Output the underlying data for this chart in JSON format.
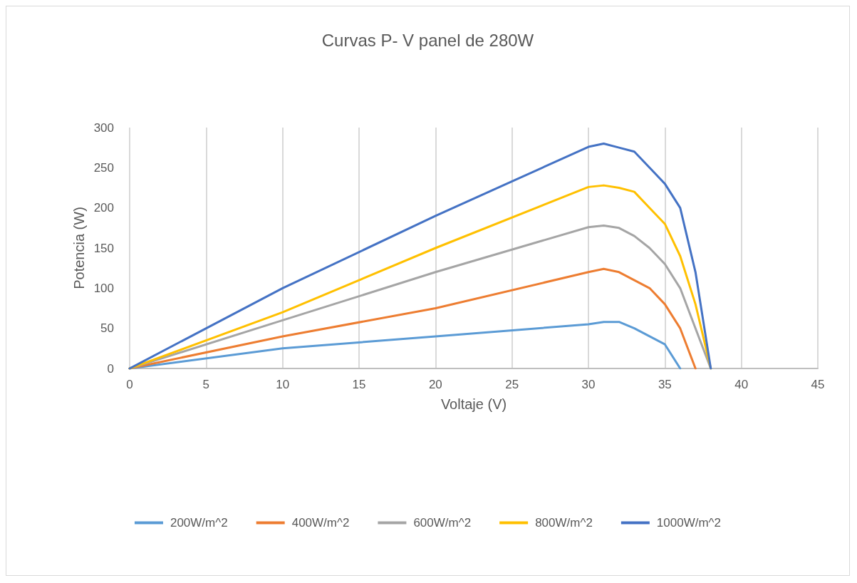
{
  "chart_data": {
    "type": "line",
    "title": "Curvas P- V panel de 280W",
    "xlabel": "Voltaje (V)",
    "ylabel": "Potencia (W)",
    "xlim": [
      0,
      45
    ],
    "xticks": [
      0,
      5,
      10,
      15,
      20,
      25,
      30,
      35,
      40,
      45
    ],
    "ylim": [
      0,
      300
    ],
    "yticks": [
      0,
      50,
      100,
      150,
      200,
      250,
      300
    ],
    "grid": "x",
    "legend": "bottom",
    "marker": "none",
    "line_style": "solid",
    "series": [
      {
        "name": "200W/m^2",
        "color": "#5b9bd5",
        "x": [
          0,
          10,
          20,
          30,
          31,
          32,
          33,
          34,
          35,
          36
        ],
        "values": [
          0,
          25,
          40,
          55,
          58,
          58,
          50,
          40,
          30,
          0
        ]
      },
      {
        "name": "400W/m^2",
        "color": "#ed7d31",
        "x": [
          0,
          10,
          20,
          30,
          31,
          32,
          33,
          34,
          35,
          36,
          37
        ],
        "values": [
          0,
          40,
          75,
          120,
          124,
          120,
          110,
          100,
          80,
          50,
          0
        ]
      },
      {
        "name": "600W/m^2",
        "color": "#a5a5a5",
        "x": [
          0,
          10,
          20,
          30,
          31,
          32,
          33,
          34,
          35,
          36,
          37,
          38
        ],
        "values": [
          0,
          60,
          120,
          176,
          178,
          175,
          165,
          150,
          130,
          100,
          50,
          0
        ]
      },
      {
        "name": "800W/m^2",
        "color": "#ffc000",
        "x": [
          0,
          10,
          20,
          30,
          31,
          32,
          33,
          34,
          35,
          36,
          37,
          38
        ],
        "values": [
          0,
          70,
          150,
          226,
          228,
          225,
          220,
          200,
          180,
          140,
          80,
          0
        ]
      },
      {
        "name": "1000W/m^2",
        "color": "#4472c4",
        "x": [
          0,
          10,
          20,
          30,
          31,
          32,
          33,
          34,
          35,
          36,
          37,
          38
        ],
        "values": [
          0,
          100,
          190,
          276,
          280,
          275,
          270,
          250,
          230,
          200,
          120,
          0
        ]
      }
    ]
  }
}
